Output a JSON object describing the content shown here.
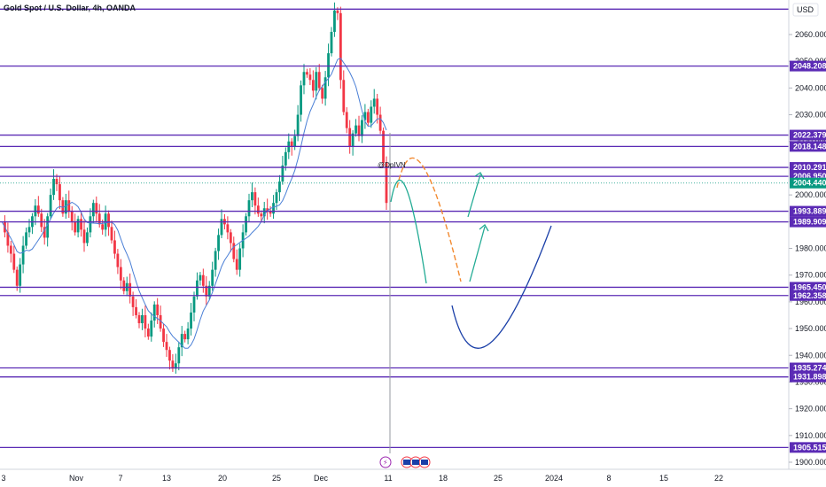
{
  "header": {
    "symbol": "Gold Spot / U.S. Dollar, 4h, OANDA",
    "currency": "USD"
  },
  "annotation": {
    "author_tag": "@DpIVN"
  },
  "colors": {
    "bull": "#089981",
    "bear": "#f23645",
    "level": "#5b2bb5",
    "ma": "#4a7fd6",
    "path_orange": "#f28a30",
    "path_teal": "#22ab94",
    "path_navy": "#1a3fa8",
    "arrow": "#22ab94",
    "price_tag": "#089981",
    "event_icon": "#9c27b0"
  },
  "chart_data": {
    "type": "candlestick",
    "title": "Gold Spot / U.S. Dollar, 4h, OANDA",
    "currency": "USD",
    "y_axis": {
      "min": 1900,
      "max": 2070,
      "ticks": [
        1900,
        1910,
        1920,
        1930,
        1940,
        1950,
        1960,
        1970,
        1980,
        1990,
        2000,
        2010,
        2020,
        2030,
        2040,
        2050,
        2060
      ]
    },
    "x_axis": {
      "tick_labels": [
        "3",
        "Nov",
        "7",
        "13",
        "20",
        "25",
        "Dec",
        "11",
        "18",
        "25",
        "2024",
        "8",
        "15",
        "22"
      ]
    },
    "current_price": 2004.44,
    "horizontal_levels": [
      2069.5,
      2048.208,
      2022.379,
      2018.148,
      2010.291,
      2006.95,
      1993.889,
      1989.909,
      1965.45,
      1962.358,
      1935.274,
      1931.898,
      1905.515
    ],
    "labeled_levels": [
      2048.208,
      2022.379,
      2018.148,
      2010.291,
      2006.95,
      1993.889,
      1989.909,
      1965.45,
      1962.358,
      1935.274,
      1931.898,
      1905.515
    ],
    "price_path": [
      1990,
      1986,
      1981,
      1978,
      1972,
      1966,
      1974,
      1981,
      1986,
      1988,
      1992,
      1996,
      1993,
      1988,
      1984,
      1992,
      2000,
      2006,
      2004,
      1998,
      1993,
      1998,
      1994,
      1990,
      1986,
      1991,
      1987,
      1982,
      1986,
      1992,
      1997,
      1993,
      1989,
      1987,
      1993,
      1988,
      1983,
      1978,
      1973,
      1968,
      1964,
      1967,
      1962,
      1958,
      1955,
      1952,
      1955,
      1950,
      1947,
      1953,
      1959,
      1955,
      1950,
      1945,
      1942,
      1938,
      1935,
      1937,
      1943,
      1948,
      1946,
      1950,
      1956,
      1962,
      1968,
      1970,
      1966,
      1962,
      1966,
      1972,
      1979,
      1985,
      1991,
      1989,
      1986,
      1982,
      1976,
      1972,
      1980,
      1986,
      1992,
      1998,
      2001,
      1996,
      1993,
      1992,
      1995,
      1994,
      1993,
      1997,
      2001,
      2005,
      2011,
      2016,
      2020,
      2018,
      2022,
      2030,
      2041,
      2046,
      2045,
      2043,
      2039,
      2046,
      2040,
      2036,
      2044,
      2053,
      2061,
      2069,
      2068,
      2043,
      2031,
      2025,
      2018,
      2023,
      2026,
      2022,
      2028,
      2031,
      2027,
      2033,
      2036,
      2030,
      2024,
      2012,
      1997
    ],
    "moving_average": {
      "name": "MA"
    }
  }
}
